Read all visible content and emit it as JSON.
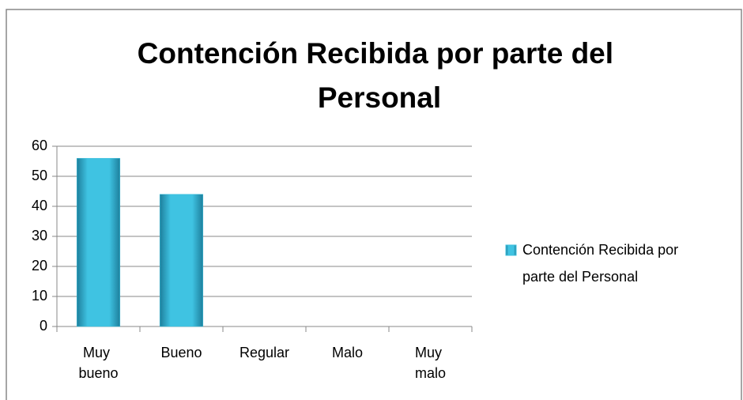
{
  "chart_data": {
    "type": "bar",
    "title": "Contención Recibida por parte del Personal",
    "categories": [
      "Muy bueno",
      "Bueno",
      "Regular",
      "Malo",
      "Muy malo"
    ],
    "series": [
      {
        "name": "Contención Recibida por parte del Personal",
        "color": "#3cbfdd",
        "values": [
          56,
          44,
          0,
          0,
          0
        ]
      }
    ],
    "ylim": [
      0,
      60
    ],
    "yticks": [
      0,
      10,
      20,
      30,
      40,
      50,
      60
    ],
    "grid": true,
    "legend": "right"
  }
}
